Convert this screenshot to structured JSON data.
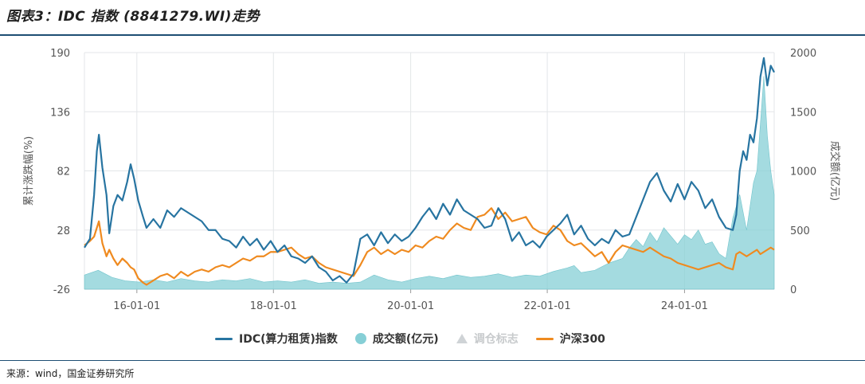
{
  "title": "图表3：IDC 指数 (8841279.WI)走势",
  "source": "来源：wind，国金证券研究所",
  "colors": {
    "idc": "#2774a1",
    "volume": "#86cfd6",
    "hs300": "#ef8a1f",
    "marker": "#cfd3d6",
    "rule": "#1d4e73"
  },
  "chart_data": {
    "type": "line",
    "x_ticks": [
      "16-01-01",
      "18-01-01",
      "20-01-01",
      "22-01-01",
      "24-01-01"
    ],
    "x_range": [
      0,
      1
    ],
    "x_tick_positions": [
      0.076,
      0.274,
      0.473,
      0.671,
      0.87
    ],
    "left_axis": {
      "label": "累计涨跌幅(%)",
      "range": [
        -26,
        190
      ],
      "ticks": [
        "190",
        "136",
        "82",
        "28",
        "-26"
      ]
    },
    "right_axis": {
      "label": "成交额(亿元)",
      "range": [
        0,
        2000
      ],
      "ticks": [
        "2000",
        "1500",
        "1000",
        "500",
        "0"
      ]
    },
    "legend": [
      {
        "name": "IDC(算力租赁)指数",
        "kind": "line"
      },
      {
        "name": "成交额(亿元)",
        "kind": "dot"
      },
      {
        "name": "调仓标志",
        "kind": "triangle"
      },
      {
        "name": "沪深300",
        "kind": "line"
      }
    ],
    "series": [
      {
        "name": "IDC(算力租赁)指数",
        "axis": "left",
        "x": [
          0,
          0.008,
          0.014,
          0.018,
          0.021,
          0.026,
          0.032,
          0.036,
          0.042,
          0.048,
          0.055,
          0.062,
          0.067,
          0.072,
          0.078,
          0.085,
          0.09,
          0.1,
          0.11,
          0.12,
          0.13,
          0.14,
          0.15,
          0.16,
          0.17,
          0.18,
          0.19,
          0.2,
          0.21,
          0.22,
          0.23,
          0.24,
          0.25,
          0.26,
          0.27,
          0.28,
          0.29,
          0.3,
          0.31,
          0.32,
          0.33,
          0.34,
          0.35,
          0.36,
          0.37,
          0.38,
          0.39,
          0.4,
          0.41,
          0.42,
          0.43,
          0.44,
          0.45,
          0.46,
          0.47,
          0.48,
          0.49,
          0.5,
          0.51,
          0.52,
          0.53,
          0.54,
          0.55,
          0.56,
          0.57,
          0.58,
          0.59,
          0.6,
          0.61,
          0.62,
          0.63,
          0.64,
          0.65,
          0.66,
          0.67,
          0.68,
          0.69,
          0.7,
          0.71,
          0.72,
          0.73,
          0.74,
          0.75,
          0.76,
          0.77,
          0.78,
          0.79,
          0.8,
          0.81,
          0.82,
          0.83,
          0.84,
          0.85,
          0.86,
          0.87,
          0.88,
          0.89,
          0.9,
          0.91,
          0.92,
          0.93,
          0.94,
          0.945,
          0.95,
          0.955,
          0.96,
          0.965,
          0.97,
          0.975,
          0.98,
          0.985,
          0.99,
          0.995,
          1
        ],
        "values": [
          12,
          20,
          60,
          100,
          115,
          85,
          60,
          25,
          50,
          60,
          55,
          72,
          88,
          75,
          55,
          40,
          30,
          38,
          30,
          46,
          40,
          48,
          44,
          40,
          36,
          28,
          28,
          20,
          18,
          12,
          22,
          14,
          20,
          10,
          18,
          8,
          14,
          4,
          2,
          -2,
          4,
          -6,
          -10,
          -18,
          -14,
          -20,
          -12,
          20,
          24,
          14,
          26,
          16,
          24,
          18,
          22,
          30,
          40,
          48,
          38,
          52,
          42,
          56,
          46,
          42,
          38,
          30,
          32,
          48,
          38,
          18,
          26,
          14,
          18,
          12,
          22,
          28,
          34,
          42,
          24,
          32,
          20,
          14,
          20,
          16,
          28,
          22,
          24,
          40,
          56,
          72,
          80,
          64,
          54,
          70,
          56,
          72,
          64,
          48,
          56,
          40,
          30,
          28,
          42,
          82,
          100,
          92,
          115,
          108,
          130,
          168,
          185,
          160,
          178,
          172
        ]
      },
      {
        "name": "沪深300",
        "axis": "left",
        "x": [
          0,
          0.008,
          0.014,
          0.018,
          0.021,
          0.026,
          0.032,
          0.036,
          0.042,
          0.048,
          0.055,
          0.062,
          0.067,
          0.072,
          0.078,
          0.085,
          0.09,
          0.1,
          0.11,
          0.12,
          0.13,
          0.14,
          0.15,
          0.16,
          0.17,
          0.18,
          0.19,
          0.2,
          0.21,
          0.22,
          0.23,
          0.24,
          0.25,
          0.26,
          0.27,
          0.28,
          0.29,
          0.3,
          0.31,
          0.32,
          0.33,
          0.34,
          0.35,
          0.36,
          0.37,
          0.38,
          0.39,
          0.4,
          0.41,
          0.42,
          0.43,
          0.44,
          0.45,
          0.46,
          0.47,
          0.48,
          0.49,
          0.5,
          0.51,
          0.52,
          0.53,
          0.54,
          0.55,
          0.56,
          0.57,
          0.58,
          0.59,
          0.6,
          0.61,
          0.62,
          0.63,
          0.64,
          0.65,
          0.66,
          0.67,
          0.68,
          0.69,
          0.7,
          0.71,
          0.72,
          0.73,
          0.74,
          0.75,
          0.76,
          0.77,
          0.78,
          0.79,
          0.8,
          0.81,
          0.82,
          0.83,
          0.84,
          0.85,
          0.86,
          0.87,
          0.88,
          0.89,
          0.9,
          0.91,
          0.92,
          0.93,
          0.94,
          0.945,
          0.95,
          0.955,
          0.96,
          0.965,
          0.97,
          0.975,
          0.98,
          0.985,
          0.99,
          0.995,
          1
        ],
        "values": [
          14,
          18,
          22,
          30,
          36,
          16,
          4,
          10,
          2,
          -4,
          2,
          -2,
          -6,
          -8,
          -16,
          -20,
          -22,
          -18,
          -14,
          -12,
          -16,
          -10,
          -14,
          -10,
          -8,
          -10,
          -6,
          -4,
          -6,
          -2,
          2,
          0,
          4,
          4,
          8,
          8,
          10,
          12,
          6,
          2,
          4,
          -2,
          -6,
          -8,
          -10,
          -12,
          -14,
          -4,
          8,
          12,
          6,
          10,
          6,
          10,
          8,
          14,
          12,
          18,
          22,
          20,
          28,
          34,
          30,
          28,
          40,
          42,
          48,
          38,
          44,
          36,
          38,
          40,
          30,
          26,
          24,
          32,
          28,
          18,
          14,
          16,
          10,
          4,
          8,
          -2,
          8,
          14,
          12,
          10,
          8,
          12,
          8,
          4,
          2,
          -2,
          -4,
          -6,
          -8,
          -6,
          -4,
          -2,
          -6,
          -8,
          6,
          8,
          6,
          4,
          6,
          8,
          10,
          6,
          8,
          10,
          12,
          10
        ]
      },
      {
        "name": "成交额(亿元)",
        "axis": "right",
        "x": [
          0,
          0.02,
          0.04,
          0.06,
          0.08,
          0.1,
          0.12,
          0.14,
          0.16,
          0.18,
          0.2,
          0.22,
          0.24,
          0.26,
          0.28,
          0.3,
          0.32,
          0.34,
          0.36,
          0.38,
          0.4,
          0.42,
          0.44,
          0.46,
          0.48,
          0.5,
          0.52,
          0.54,
          0.56,
          0.58,
          0.6,
          0.62,
          0.64,
          0.66,
          0.68,
          0.7,
          0.71,
          0.72,
          0.74,
          0.76,
          0.78,
          0.79,
          0.8,
          0.81,
          0.82,
          0.83,
          0.84,
          0.85,
          0.86,
          0.87,
          0.88,
          0.89,
          0.9,
          0.91,
          0.92,
          0.93,
          0.94,
          0.95,
          0.96,
          0.965,
          0.97,
          0.975,
          0.98,
          0.985,
          0.99,
          0.995,
          1
        ],
        "values": [
          120,
          160,
          100,
          70,
          60,
          80,
          60,
          90,
          70,
          60,
          80,
          70,
          90,
          60,
          70,
          60,
          80,
          50,
          60,
          50,
          60,
          120,
          80,
          60,
          90,
          110,
          90,
          120,
          100,
          110,
          130,
          100,
          120,
          110,
          150,
          180,
          200,
          140,
          160,
          220,
          260,
          350,
          420,
          360,
          480,
          400,
          520,
          450,
          380,
          460,
          420,
          500,
          380,
          400,
          300,
          260,
          600,
          800,
          500,
          700,
          900,
          1000,
          1400,
          1800,
          1300,
          1000,
          800
        ]
      }
    ]
  }
}
